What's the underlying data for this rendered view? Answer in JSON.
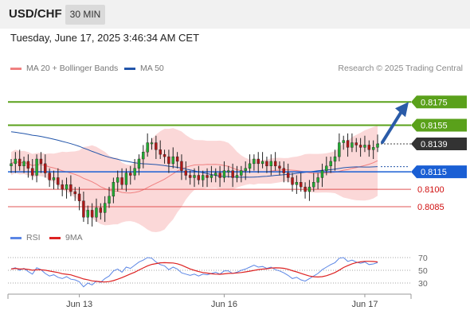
{
  "header": {
    "symbol": "USD/CHF",
    "timeframe": "30 MIN",
    "timestamp": "Tuesday, June 17, 2025 3:46:34 AM CET"
  },
  "legend": {
    "ma20_bb": "MA 20 + Bollinger Bands",
    "ma50": "MA 50",
    "credit": "Research © 2025 Trading Central"
  },
  "indicator_legend": {
    "rsi": "RSI",
    "ma9": "9MA"
  },
  "colors": {
    "candle_up": "#22aa33",
    "candle_down": "#b01818",
    "bollinger_fill": "#fbd8d8",
    "ma20": "#f08080",
    "ma50": "#2255aa",
    "target_green": "#5aa11b",
    "support_blue": "#1a5fd4",
    "support_red": "#e05555",
    "price_tag": "#333333",
    "arrow": "#2a5ba8",
    "rsi": "#5b86e5",
    "rsi_ma": "#dd2222"
  },
  "chart_data": [
    {
      "type": "candlestick",
      "title": "USD/CHF 30 MIN",
      "y_range": [
        0.807,
        0.8195
      ],
      "x_labels": [
        "Jun 13",
        "Jun 16",
        "Jun 17"
      ],
      "price_levels": [
        {
          "label": "0.8175",
          "value": 0.8175,
          "kind": "resistance"
        },
        {
          "label": "0.8155",
          "value": 0.8155,
          "kind": "resistance"
        },
        {
          "label": "0.8139",
          "value": 0.8139,
          "kind": "current"
        },
        {
          "label": "0.8115",
          "value": 0.8115,
          "kind": "pivot"
        },
        {
          "label": "0.8100",
          "value": 0.81,
          "kind": "support"
        },
        {
          "label": "0.8085",
          "value": 0.8085,
          "kind": "support"
        }
      ],
      "close": [
        0.8122,
        0.8126,
        0.812,
        0.8124,
        0.8118,
        0.8112,
        0.8126,
        0.8122,
        0.8114,
        0.8108,
        0.811,
        0.8104,
        0.81,
        0.8104,
        0.8098,
        0.8096,
        0.809,
        0.8076,
        0.8082,
        0.8076,
        0.8084,
        0.808,
        0.8088,
        0.8094,
        0.8106,
        0.811,
        0.8104,
        0.8114,
        0.8112,
        0.8118,
        0.8126,
        0.8132,
        0.814,
        0.814,
        0.8134,
        0.813,
        0.8128,
        0.8122,
        0.8128,
        0.8124,
        0.8116,
        0.8112,
        0.811,
        0.8112,
        0.8108,
        0.8112,
        0.811,
        0.8112,
        0.8114,
        0.811,
        0.8116,
        0.8116,
        0.811,
        0.8112,
        0.8116,
        0.8118,
        0.8122,
        0.8126,
        0.8122,
        0.8124,
        0.812,
        0.8124,
        0.812,
        0.8118,
        0.8114,
        0.811,
        0.8104,
        0.8106,
        0.8102,
        0.8098,
        0.8102,
        0.8106,
        0.811,
        0.8116,
        0.812,
        0.8124,
        0.8128,
        0.814,
        0.8142,
        0.8136,
        0.814,
        0.8138,
        0.8136,
        0.8138,
        0.8134,
        0.8136,
        0.8139
      ],
      "series": [
        {
          "name": "RSI",
          "range": [
            20,
            80
          ],
          "ticks": [
            70,
            50,
            30
          ],
          "values": [
            52,
            54,
            50,
            53,
            48,
            44,
            54,
            51,
            45,
            41,
            43,
            39,
            37,
            40,
            36,
            35,
            32,
            24,
            30,
            27,
            33,
            31,
            37,
            41,
            49,
            52,
            47,
            55,
            53,
            58,
            63,
            66,
            70,
            69,
            63,
            59,
            57,
            51,
            55,
            52,
            46,
            44,
            42,
            44,
            41,
            44,
            43,
            45,
            47,
            44,
            49,
            49,
            45,
            47,
            50,
            52,
            55,
            58,
            55,
            56,
            53,
            55,
            51,
            49,
            46,
            42,
            37,
            39,
            35,
            33,
            37,
            41,
            45,
            51,
            55,
            59,
            62,
            69,
            70,
            64,
            66,
            63,
            61,
            63,
            59,
            60,
            62
          ]
        }
      ]
    }
  ]
}
